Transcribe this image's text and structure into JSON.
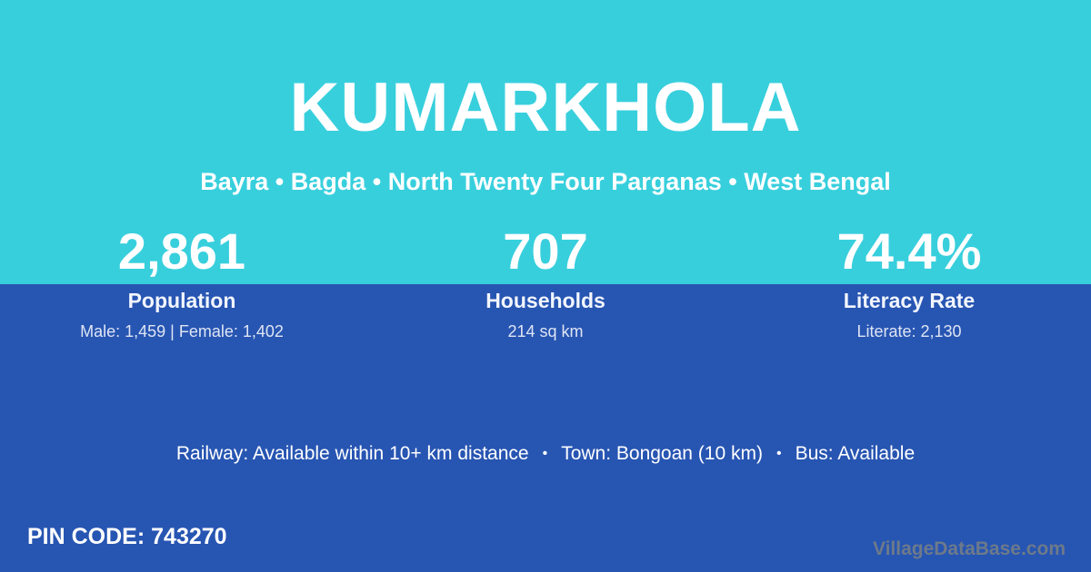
{
  "header": {
    "title": "KUMARKHOLA",
    "subtitle": "Bayra • Bagda • North Twenty Four Parganas • West Bengal"
  },
  "stats": [
    {
      "value": "2,861",
      "label": "Population",
      "detail": "Male: 1,459 | Female: 1,402"
    },
    {
      "value": "707",
      "label": "Households",
      "detail": "214 sq km"
    },
    {
      "value": "74.4%",
      "label": "Literacy Rate",
      "detail": "Literate: 2,130"
    }
  ],
  "amenities": {
    "separator": "•",
    "items": [
      "Railway: Available within 10+ km distance",
      "Town: Bongoan (10 km)",
      "Bus: Available"
    ]
  },
  "footer": {
    "pin_label": "PIN CODE:",
    "pin_value": "743270",
    "watermark": "VillageDataBase.com"
  },
  "colors": {
    "top_band": "#38CFDD",
    "bottom_band": "#2755B2",
    "text": "#FFFFFF",
    "watermark": "#6D7A8A"
  }
}
